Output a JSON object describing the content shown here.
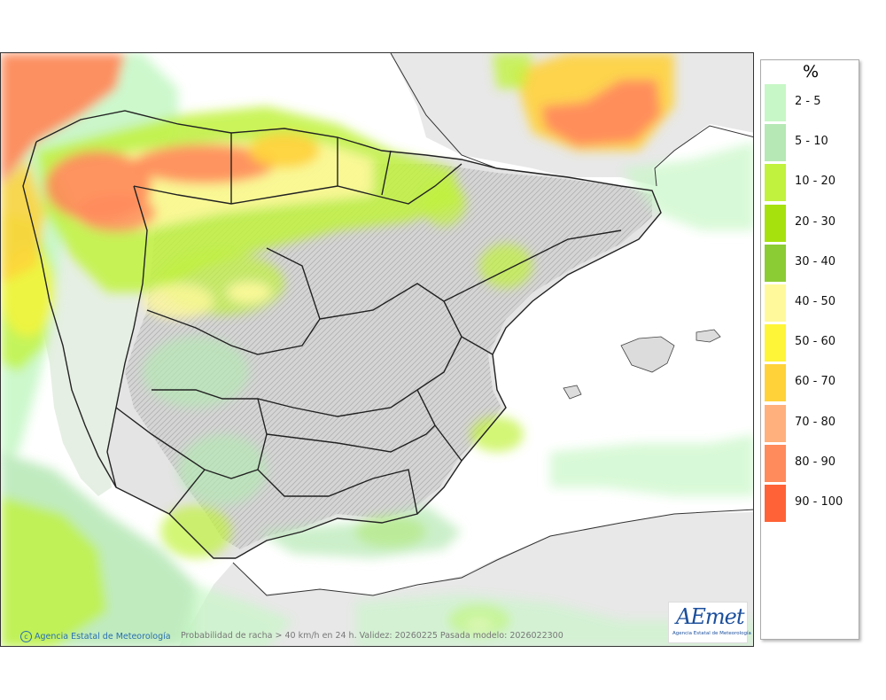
{
  "legend": {
    "title": "%",
    "items": [
      {
        "label": "2 - 5",
        "color": "#c7f7c6"
      },
      {
        "label": "5 - 10",
        "color": "#b5e8b4"
      },
      {
        "label": "10 - 20",
        "color": "#c1f23d"
      },
      {
        "label": "20 - 30",
        "color": "#a6e10e"
      },
      {
        "label": "30 - 40",
        "color": "#8bcb34"
      },
      {
        "label": "40 - 50",
        "color": "#fff99c"
      },
      {
        "label": "50 - 60",
        "color": "#fff538"
      },
      {
        "label": "60 - 70",
        "color": "#ffd23a"
      },
      {
        "label": "70 - 80",
        "color": "#ffb07c"
      },
      {
        "label": "80 - 90",
        "color": "#ff8a5c"
      },
      {
        "label": "90 - 100",
        "color": "#ff6236"
      }
    ]
  },
  "footer": {
    "credit": "Agencia Estatal de Meteorología",
    "description": "Probabilidad de racha > 40 km/h en 24 h. Validez: 20260225 Pasada modelo: 2026022300"
  },
  "logo": {
    "name": "AEmet",
    "subtitle": "Agencia Estatal de Meteorología"
  }
}
